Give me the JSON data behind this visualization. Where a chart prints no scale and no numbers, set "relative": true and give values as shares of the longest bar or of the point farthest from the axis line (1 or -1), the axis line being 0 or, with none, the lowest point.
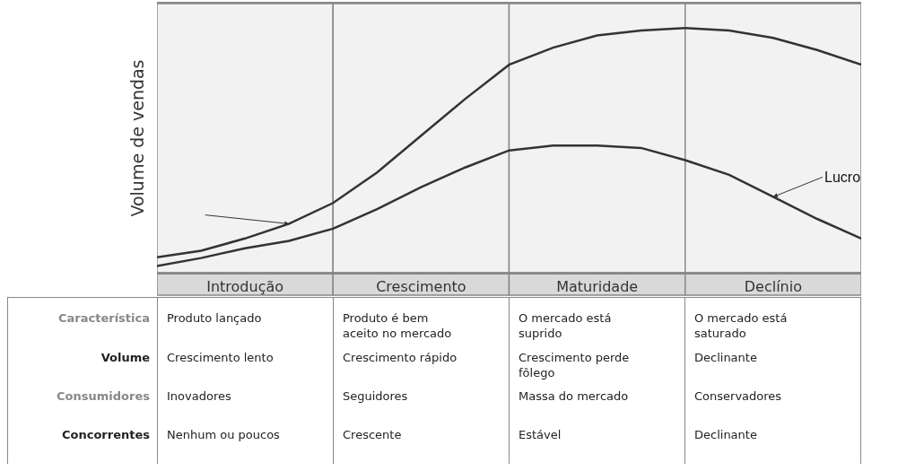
{
  "chart_data": {
    "type": "line",
    "relative": true,
    "ylabel": "Volume de vendas",
    "grid": false,
    "legend": "right",
    "marker": "none",
    "line_style": "solid",
    "categories": [
      null,
      null,
      "Introdução",
      null,
      null,
      null,
      "Crescimento",
      null,
      null,
      null,
      "Maturidade",
      null,
      null,
      null,
      "Declínio",
      null,
      null
    ],
    "series": [
      {
        "color": "#333333",
        "values": [
          0.063,
          0.09,
          0.14,
          0.2,
          0.285,
          0.41,
          0.56,
          0.71,
          0.85,
          0.92,
          0.97,
          0.99,
          1.0,
          0.99,
          0.96,
          0.91,
          0.85
        ]
      },
      {
        "name": "Lucro",
        "color": "#333333",
        "values": [
          0.027,
          0.06,
          0.1,
          0.13,
          0.18,
          0.26,
          0.35,
          0.43,
          0.5,
          0.52,
          0.52,
          0.51,
          0.46,
          0.4,
          0.31,
          0.22,
          0.14
        ]
      }
    ],
    "annotations": [
      "Característica",
      "Produto lançado",
      "Produto é bem\naceito no mercado",
      "O mercado está\n suprido",
      "O mercado está\nsaturado",
      "Volume",
      "Crescimento lento",
      "Crescimento rápido",
      "Crescimento perde\nfôlego",
      "Declinante",
      "Consumidores",
      "Inovadores",
      "Seguidores",
      "Massa do mercado",
      "Conservadores",
      "Concorrentes",
      "Nenhum ou poucos",
      "Crescente",
      "Estável",
      "Declinante"
    ]
  }
}
